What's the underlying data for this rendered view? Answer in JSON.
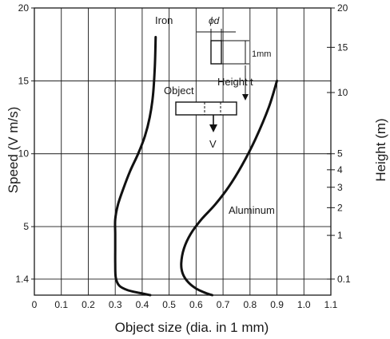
{
  "chart_data": {
    "type": "line",
    "xlabel": "Object size (dia. in 1 mm)",
    "ylabel": "Speed (V m/s)",
    "y2label": "Height (m)",
    "xlim": [
      0,
      1.1
    ],
    "ylim": [
      0.3,
      20
    ],
    "grid": true,
    "x_ticks": [
      0,
      0.1,
      0.2,
      0.3,
      0.4,
      0.5,
      0.6,
      0.7,
      0.8,
      0.9,
      1.0,
      1.1
    ],
    "x_tick_labels": [
      "0",
      "0.1",
      "0.2",
      "0.3",
      "0.4",
      "0.5",
      "0.6",
      "0.7",
      "0.8",
      "0.9",
      "1.0",
      "1.1"
    ],
    "y_ticks": [
      1.4,
      5,
      10,
      15,
      20
    ],
    "y_tick_labels": [
      "1.4",
      "5",
      "10",
      "15",
      "20"
    ],
    "y2_ticks": [
      {
        "label": "20",
        "speed": 20
      },
      {
        "label": "15",
        "speed": 17.3
      },
      {
        "label": "10",
        "speed": 14.2
      },
      {
        "label": "5",
        "speed": 10.0
      },
      {
        "label": "4",
        "speed": 8.9
      },
      {
        "label": "3",
        "speed": 7.7
      },
      {
        "label": "2",
        "speed": 6.3
      },
      {
        "label": "1",
        "speed": 4.4
      },
      {
        "label": "0.1",
        "speed": 1.4
      }
    ],
    "series": [
      {
        "name": "Iron",
        "x": [
          0.45,
          0.447,
          0.44,
          0.428,
          0.41,
          0.385,
          0.355,
          0.33,
          0.31,
          0.3,
          0.3,
          0.3,
          0.3,
          0.302,
          0.315,
          0.345,
          0.39,
          0.43
        ],
        "y": [
          18.0,
          16.0,
          14.0,
          12.5,
          11.2,
          10.0,
          8.8,
          7.6,
          6.5,
          5.5,
          4.5,
          3.5,
          2.5,
          1.5,
          0.95,
          0.65,
          0.45,
          0.3
        ]
      },
      {
        "name": "Aluminum",
        "x": [
          0.9,
          0.87,
          0.82,
          0.77,
          0.72,
          0.67,
          0.62,
          0.58,
          0.555,
          0.545,
          0.55,
          0.57,
          0.6,
          0.635,
          0.66
        ],
        "y": [
          15.0,
          13.2,
          11.0,
          9.2,
          7.7,
          6.5,
          5.5,
          4.5,
          3.5,
          2.5,
          1.8,
          1.2,
          0.75,
          0.45,
          0.3
        ]
      }
    ]
  },
  "annotations": {
    "iron": "Iron",
    "aluminum": "Aluminum",
    "object": "Object",
    "height": "Height",
    "height_arrow": "t",
    "diameter": "ϕd",
    "one_mm": "1mm",
    "velocity": "V"
  },
  "colors": {
    "line": "#111111",
    "grid": "#1a1a1a"
  }
}
